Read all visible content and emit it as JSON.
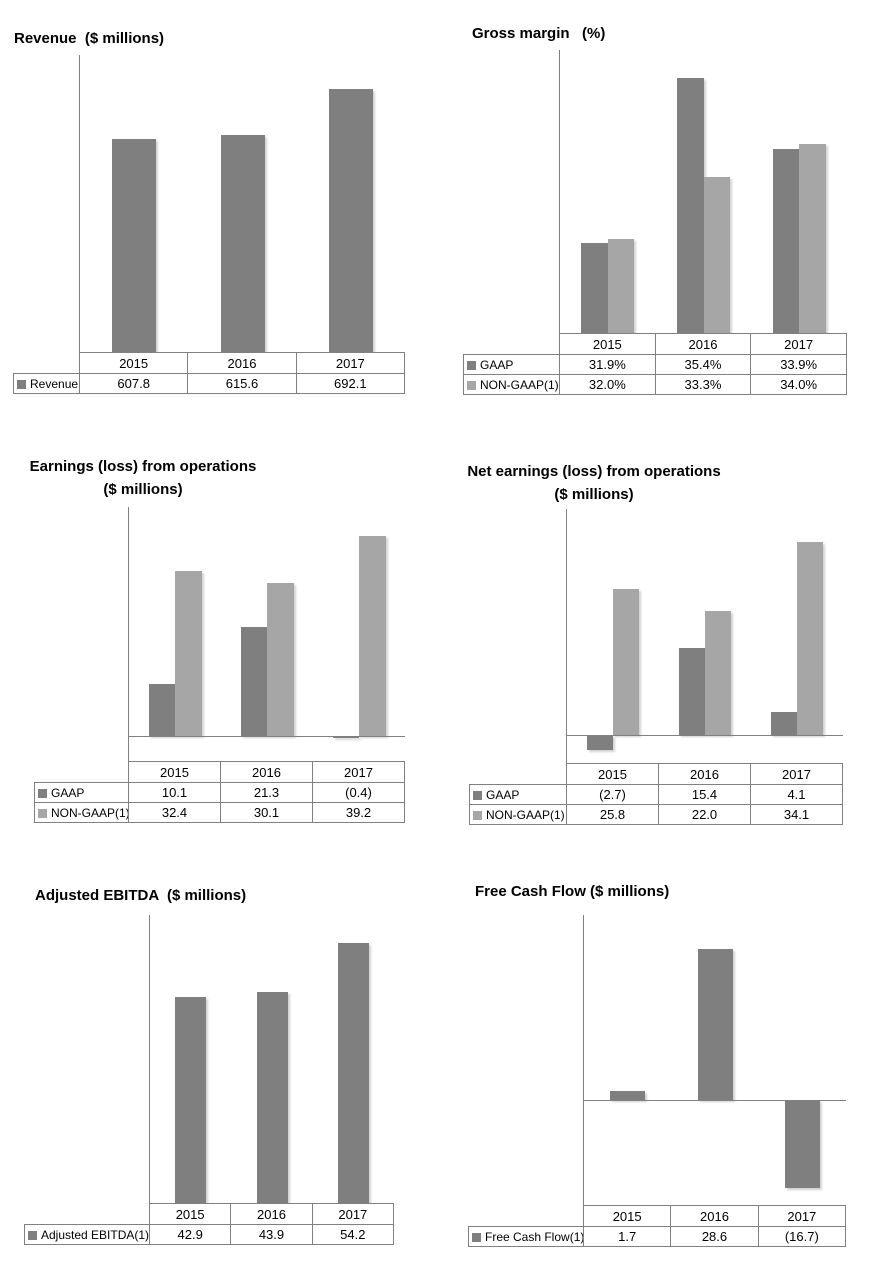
{
  "page_title": "Financial highlights charts",
  "colors": {
    "background": "#ffffff",
    "bar_dark": "#7f7f7f",
    "bar_light": "#a6a6a6",
    "axis_line": "#808080",
    "table_border": "#808080",
    "text": "#000000"
  },
  "chart_data": [
    {
      "id": "revenue",
      "type": "bar",
      "title_lines": [
        "Revenue  ($ millions)"
      ],
      "categories": [
        "2015",
        "2016",
        "2017"
      ],
      "series": [
        {
          "name": "Revenue",
          "tone": "dark",
          "values": [
            607.8,
            615.6,
            692.1
          ],
          "display": [
            "607.8",
            "615.6",
            "692.1"
          ]
        }
      ],
      "ylim": [
        250,
        750
      ],
      "grid": false,
      "legend_position": "table-left"
    },
    {
      "id": "gross-margin",
      "type": "bar",
      "title_lines": [
        "Gross margin   (%)"
      ],
      "categories": [
        "2015",
        "2016",
        "2017"
      ],
      "series": [
        {
          "name": "GAAP",
          "tone": "dark",
          "values": [
            31.9,
            35.4,
            33.9
          ],
          "display": [
            "31.9%",
            "35.4%",
            "33.9%"
          ]
        },
        {
          "name": "NON-GAAP(1)",
          "tone": "light",
          "values": [
            32.0,
            33.3,
            34.0
          ],
          "display": [
            "32.0%",
            "33.3%",
            "34.0%"
          ]
        }
      ],
      "ylim": [
        30,
        36
      ],
      "grid": false,
      "legend_position": "table-left"
    },
    {
      "id": "earnings-from-operations",
      "type": "bar",
      "title_lines": [
        "Earnings (loss) from operations",
        "($ millions)"
      ],
      "categories": [
        "2015",
        "2016",
        "2017"
      ],
      "series": [
        {
          "name": "GAAP",
          "tone": "dark",
          "values": [
            10.1,
            21.3,
            -0.4
          ],
          "display": [
            "10.1",
            "21.3",
            "(0.4)"
          ]
        },
        {
          "name": "NON-GAAP(1)",
          "tone": "light",
          "values": [
            32.4,
            30.1,
            39.2
          ],
          "display": [
            "32.4",
            "30.1",
            "39.2"
          ]
        }
      ],
      "ylim": [
        -5,
        45
      ],
      "grid": false,
      "legend_position": "table-left"
    },
    {
      "id": "net-earnings-from-operations",
      "type": "bar",
      "title_lines": [
        "Net earnings (loss) from operations",
        "($ millions)"
      ],
      "categories": [
        "2015",
        "2016",
        "2017"
      ],
      "series": [
        {
          "name": "GAAP",
          "tone": "dark",
          "values": [
            -2.7,
            15.4,
            4.1
          ],
          "display": [
            "(2.7)",
            "15.4",
            "4.1"
          ]
        },
        {
          "name": "NON-GAAP(1)",
          "tone": "light",
          "values": [
            25.8,
            22.0,
            34.1
          ],
          "display": [
            "25.8",
            "22.0",
            "34.1"
          ]
        }
      ],
      "ylim": [
        -5,
        40
      ],
      "grid": false,
      "legend_position": "table-left"
    },
    {
      "id": "adjusted-ebitda",
      "type": "bar",
      "title_lines": [
        "Adjusted EBITDA  ($ millions)"
      ],
      "categories": [
        "2015",
        "2016",
        "2017"
      ],
      "series": [
        {
          "name": "Adjusted EBITDA(1)",
          "tone": "dark",
          "values": [
            42.9,
            43.9,
            54.2
          ],
          "display": [
            "42.9",
            "43.9",
            "54.2"
          ]
        }
      ],
      "ylim": [
        0,
        60
      ],
      "grid": false,
      "legend_position": "table-left"
    },
    {
      "id": "free-cash-flow",
      "type": "bar",
      "title_lines": [
        "Free Cash Flow ($ millions)"
      ],
      "categories": [
        "2015",
        "2016",
        "2017"
      ],
      "series": [
        {
          "name": "Free Cash Flow(1)",
          "tone": "dark",
          "values": [
            1.7,
            28.6,
            -16.7
          ],
          "display": [
            "1.7",
            "28.6",
            "(16.7)"
          ]
        }
      ],
      "ylim": [
        -20,
        35
      ],
      "grid": false,
      "legend_position": "table-left"
    }
  ]
}
